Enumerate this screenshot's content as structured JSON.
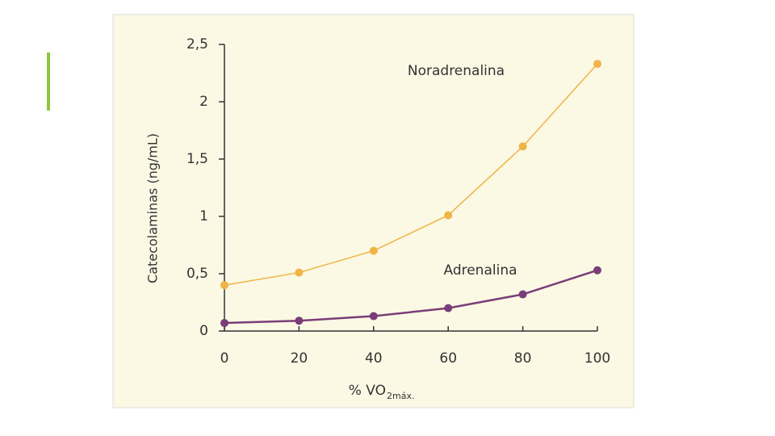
{
  "chart_data": {
    "type": "line",
    "ylabel": "Catecolaminas (ng/mL)",
    "xlabel": "% VO",
    "xlabel_sub": "2máx.",
    "x": [
      0,
      20,
      40,
      60,
      80,
      100
    ],
    "series": [
      {
        "name": "Noradrenalina",
        "color": "#f0b445",
        "values": [
          0.4,
          0.51,
          0.7,
          1.01,
          1.61,
          2.33
        ]
      },
      {
        "name": "Adrenalina",
        "color": "#7a3d78",
        "values": [
          0.07,
          0.09,
          0.13,
          0.2,
          0.32,
          0.53
        ]
      }
    ],
    "xlim": [
      0,
      100
    ],
    "xticks": [
      0,
      20,
      40,
      60,
      80,
      100
    ],
    "ylim": [
      0,
      2.5
    ],
    "yticks": [
      0,
      {
        "value": 0.5,
        "label": "0,5"
      },
      1,
      {
        "value": 1.5,
        "label": "1,5"
      },
      2,
      {
        "value": 2.5,
        "label": "2,5"
      }
    ]
  }
}
